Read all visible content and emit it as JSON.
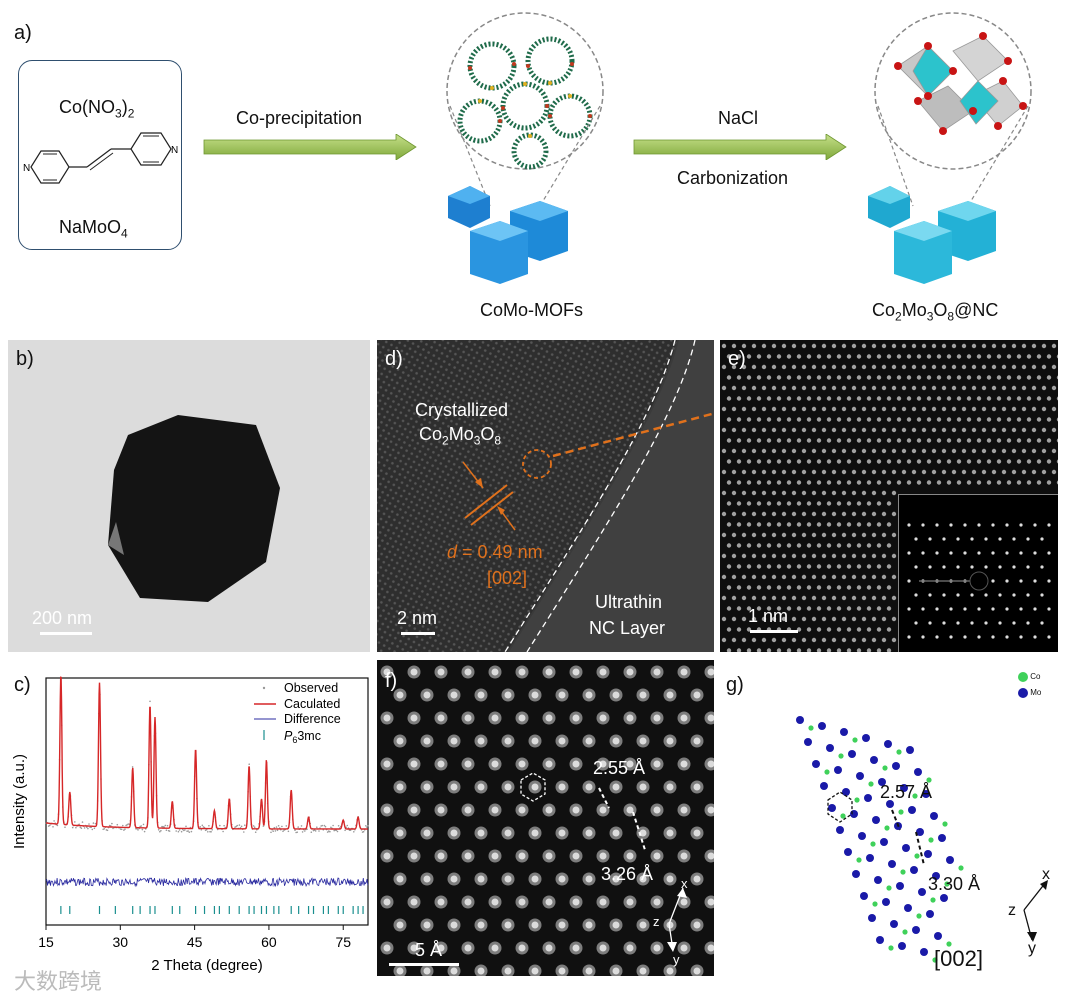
{
  "panel_a": {
    "label": "a)",
    "box_line1": "Co(NO",
    "box_line1_sub": "3",
    "box_line1_end": ")",
    "box_line1_sub2": "2",
    "box_line3": "NaMoO",
    "box_line3_sub": "4",
    "arrow1_label": "Co-precipitation",
    "arrow2_label_top": "NaCl",
    "arrow2_label_bottom": "Carbonization",
    "product1": "CoMo-MOFs",
    "product2_parts": [
      "Co",
      "2",
      "Mo",
      "3",
      "O",
      "8",
      "@NC"
    ],
    "pyridine_n": "N"
  },
  "panel_b": {
    "label": "b)",
    "scale": "200 nm"
  },
  "panel_c": {
    "label": "c)",
    "ylabel": "Intensity (a.u.)",
    "xlabel": "2 Theta (degree)",
    "legend": [
      "Observed",
      "Caculated",
      "Difference"
    ],
    "legend_ticks": [
      "P",
      "6",
      "3mc"
    ]
  },
  "panel_d": {
    "label": "d)",
    "crys1": "Crystallized",
    "crys2_parts": [
      "Co",
      "2",
      "Mo",
      "3",
      "O",
      "8"
    ],
    "dspacing_var": "d",
    "dspacing": " = 0.49 nm",
    "plane": "[002]",
    "ultrathin1": "Ultrathin",
    "ultrathin2": "NC Layer",
    "scale": "2 nm"
  },
  "panel_e": {
    "label": "e)",
    "scale": "1 nm"
  },
  "panel_f": {
    "label": "f)",
    "d1": "2.55 Å",
    "d2": "3.26 Å",
    "scale": "5 Å",
    "ax_x": "x",
    "ax_y": "y",
    "ax_z": "z"
  },
  "panel_g": {
    "label": "g)",
    "legend_co": "Co",
    "legend_mo": "Mo",
    "d1": "2.57 Å",
    "d2": "3.30 Å",
    "plane": "[002]",
    "ax_x": "x",
    "ax_y": "y",
    "ax_z": "z",
    "colors": {
      "co": "#3fd15a",
      "mo": "#1a1aa8"
    }
  },
  "watermark": "大数跨境",
  "chart_data": {
    "type": "line",
    "xlabel": "2 Theta (degree)",
    "ylabel": "Intensity (a.u.)",
    "xlim": [
      15,
      80
    ],
    "xticks": [
      15,
      30,
      45,
      60,
      75
    ],
    "series": [
      {
        "name": "Observed",
        "style": "scatter"
      },
      {
        "name": "Caculated",
        "color": "#d62728"
      },
      {
        "name": "Difference",
        "color": "#2b2ba0"
      }
    ],
    "peaks": [
      {
        "x": 18.0,
        "y": 1.0
      },
      {
        "x": 19.8,
        "y": 0.22
      },
      {
        "x": 25.8,
        "y": 0.96
      },
      {
        "x": 32.5,
        "y": 0.4
      },
      {
        "x": 36.0,
        "y": 0.82
      },
      {
        "x": 37.0,
        "y": 0.74
      },
      {
        "x": 40.5,
        "y": 0.18
      },
      {
        "x": 45.2,
        "y": 0.53
      },
      {
        "x": 49.0,
        "y": 0.12
      },
      {
        "x": 52.0,
        "y": 0.2
      },
      {
        "x": 56.0,
        "y": 0.42
      },
      {
        "x": 58.5,
        "y": 0.2
      },
      {
        "x": 59.5,
        "y": 0.46
      },
      {
        "x": 64.5,
        "y": 0.26
      },
      {
        "x": 68.0,
        "y": 0.08
      },
      {
        "x": 75.0,
        "y": 0.06
      },
      {
        "x": 78.0,
        "y": 0.08
      }
    ],
    "reflection_ticks": [
      18,
      19.8,
      25.8,
      29,
      32.5,
      34,
      36,
      37,
      40.5,
      42,
      45.2,
      47,
      49,
      50,
      52,
      54,
      56,
      57,
      58.5,
      59.5,
      61,
      62,
      64.5,
      66,
      68,
      69,
      71,
      72,
      74,
      75,
      77,
      78,
      79
    ]
  }
}
